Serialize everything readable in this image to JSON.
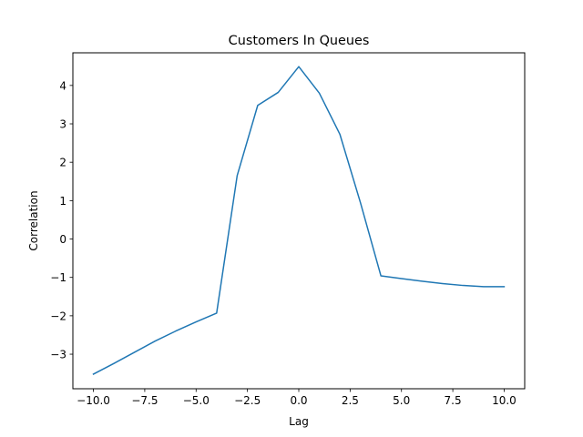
{
  "chart_data": {
    "type": "line",
    "title": "Customers In Queues",
    "xlabel": "Lag",
    "ylabel": "Correlation",
    "xlim": [
      -11,
      11
    ],
    "ylim": [
      -3.9,
      4.85
    ],
    "x_ticks": [
      -10,
      -7.5,
      -5,
      -2.5,
      0,
      2.5,
      5,
      7.5,
      10
    ],
    "x_tick_labels": [
      "−10.0",
      "−7.5",
      "−5.0",
      "−2.5",
      "0.0",
      "2.5",
      "5.0",
      "7.5",
      "10.0"
    ],
    "y_ticks": [
      -3,
      -2,
      -1,
      0,
      1,
      2,
      3,
      4
    ],
    "y_tick_labels": [
      "−3",
      "−2",
      "−1",
      "0",
      "1",
      "2",
      "3",
      "4"
    ],
    "grid": false,
    "series": [
      {
        "color": "#1f77b4",
        "x": [
          -10,
          -9,
          -8,
          -7,
          -6,
          -5,
          -4,
          -3,
          -2,
          -1,
          0,
          1,
          2,
          3,
          4,
          5,
          6,
          7,
          8,
          9,
          10
        ],
        "y": [
          -3.52,
          -3.24,
          -2.95,
          -2.66,
          -2.4,
          -2.16,
          -1.93,
          1.65,
          3.48,
          3.82,
          4.49,
          3.8,
          2.73,
          0.95,
          -0.96,
          -1.03,
          -1.1,
          -1.16,
          -1.21,
          -1.24,
          -1.24
        ]
      }
    ]
  }
}
